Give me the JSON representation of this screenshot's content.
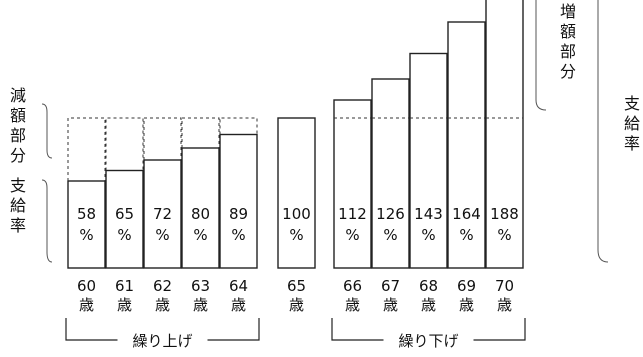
{
  "labels": {
    "reduced": "減額部分",
    "rate_left": "支給率",
    "increased": "増額部分",
    "rate_right": "支給率"
  },
  "chart_data": {
    "type": "bar",
    "categories": [
      "60",
      "61",
      "62",
      "63",
      "64",
      "65",
      "66",
      "67",
      "68",
      "69",
      "70"
    ],
    "age_suffix": "歳",
    "values": [
      58,
      65,
      72,
      80,
      89,
      100,
      112,
      126,
      143,
      164,
      188
    ],
    "value_labels": [
      "58",
      "65",
      "72",
      "80",
      "89",
      "100",
      "112",
      "126",
      "143",
      "164",
      "188"
    ],
    "unit": "%",
    "baseline": 100,
    "groups": [
      {
        "label": "繰り上げ",
        "from": 0,
        "to": 4
      },
      {
        "label": "繰り下げ",
        "from": 6,
        "to": 10
      }
    ]
  }
}
